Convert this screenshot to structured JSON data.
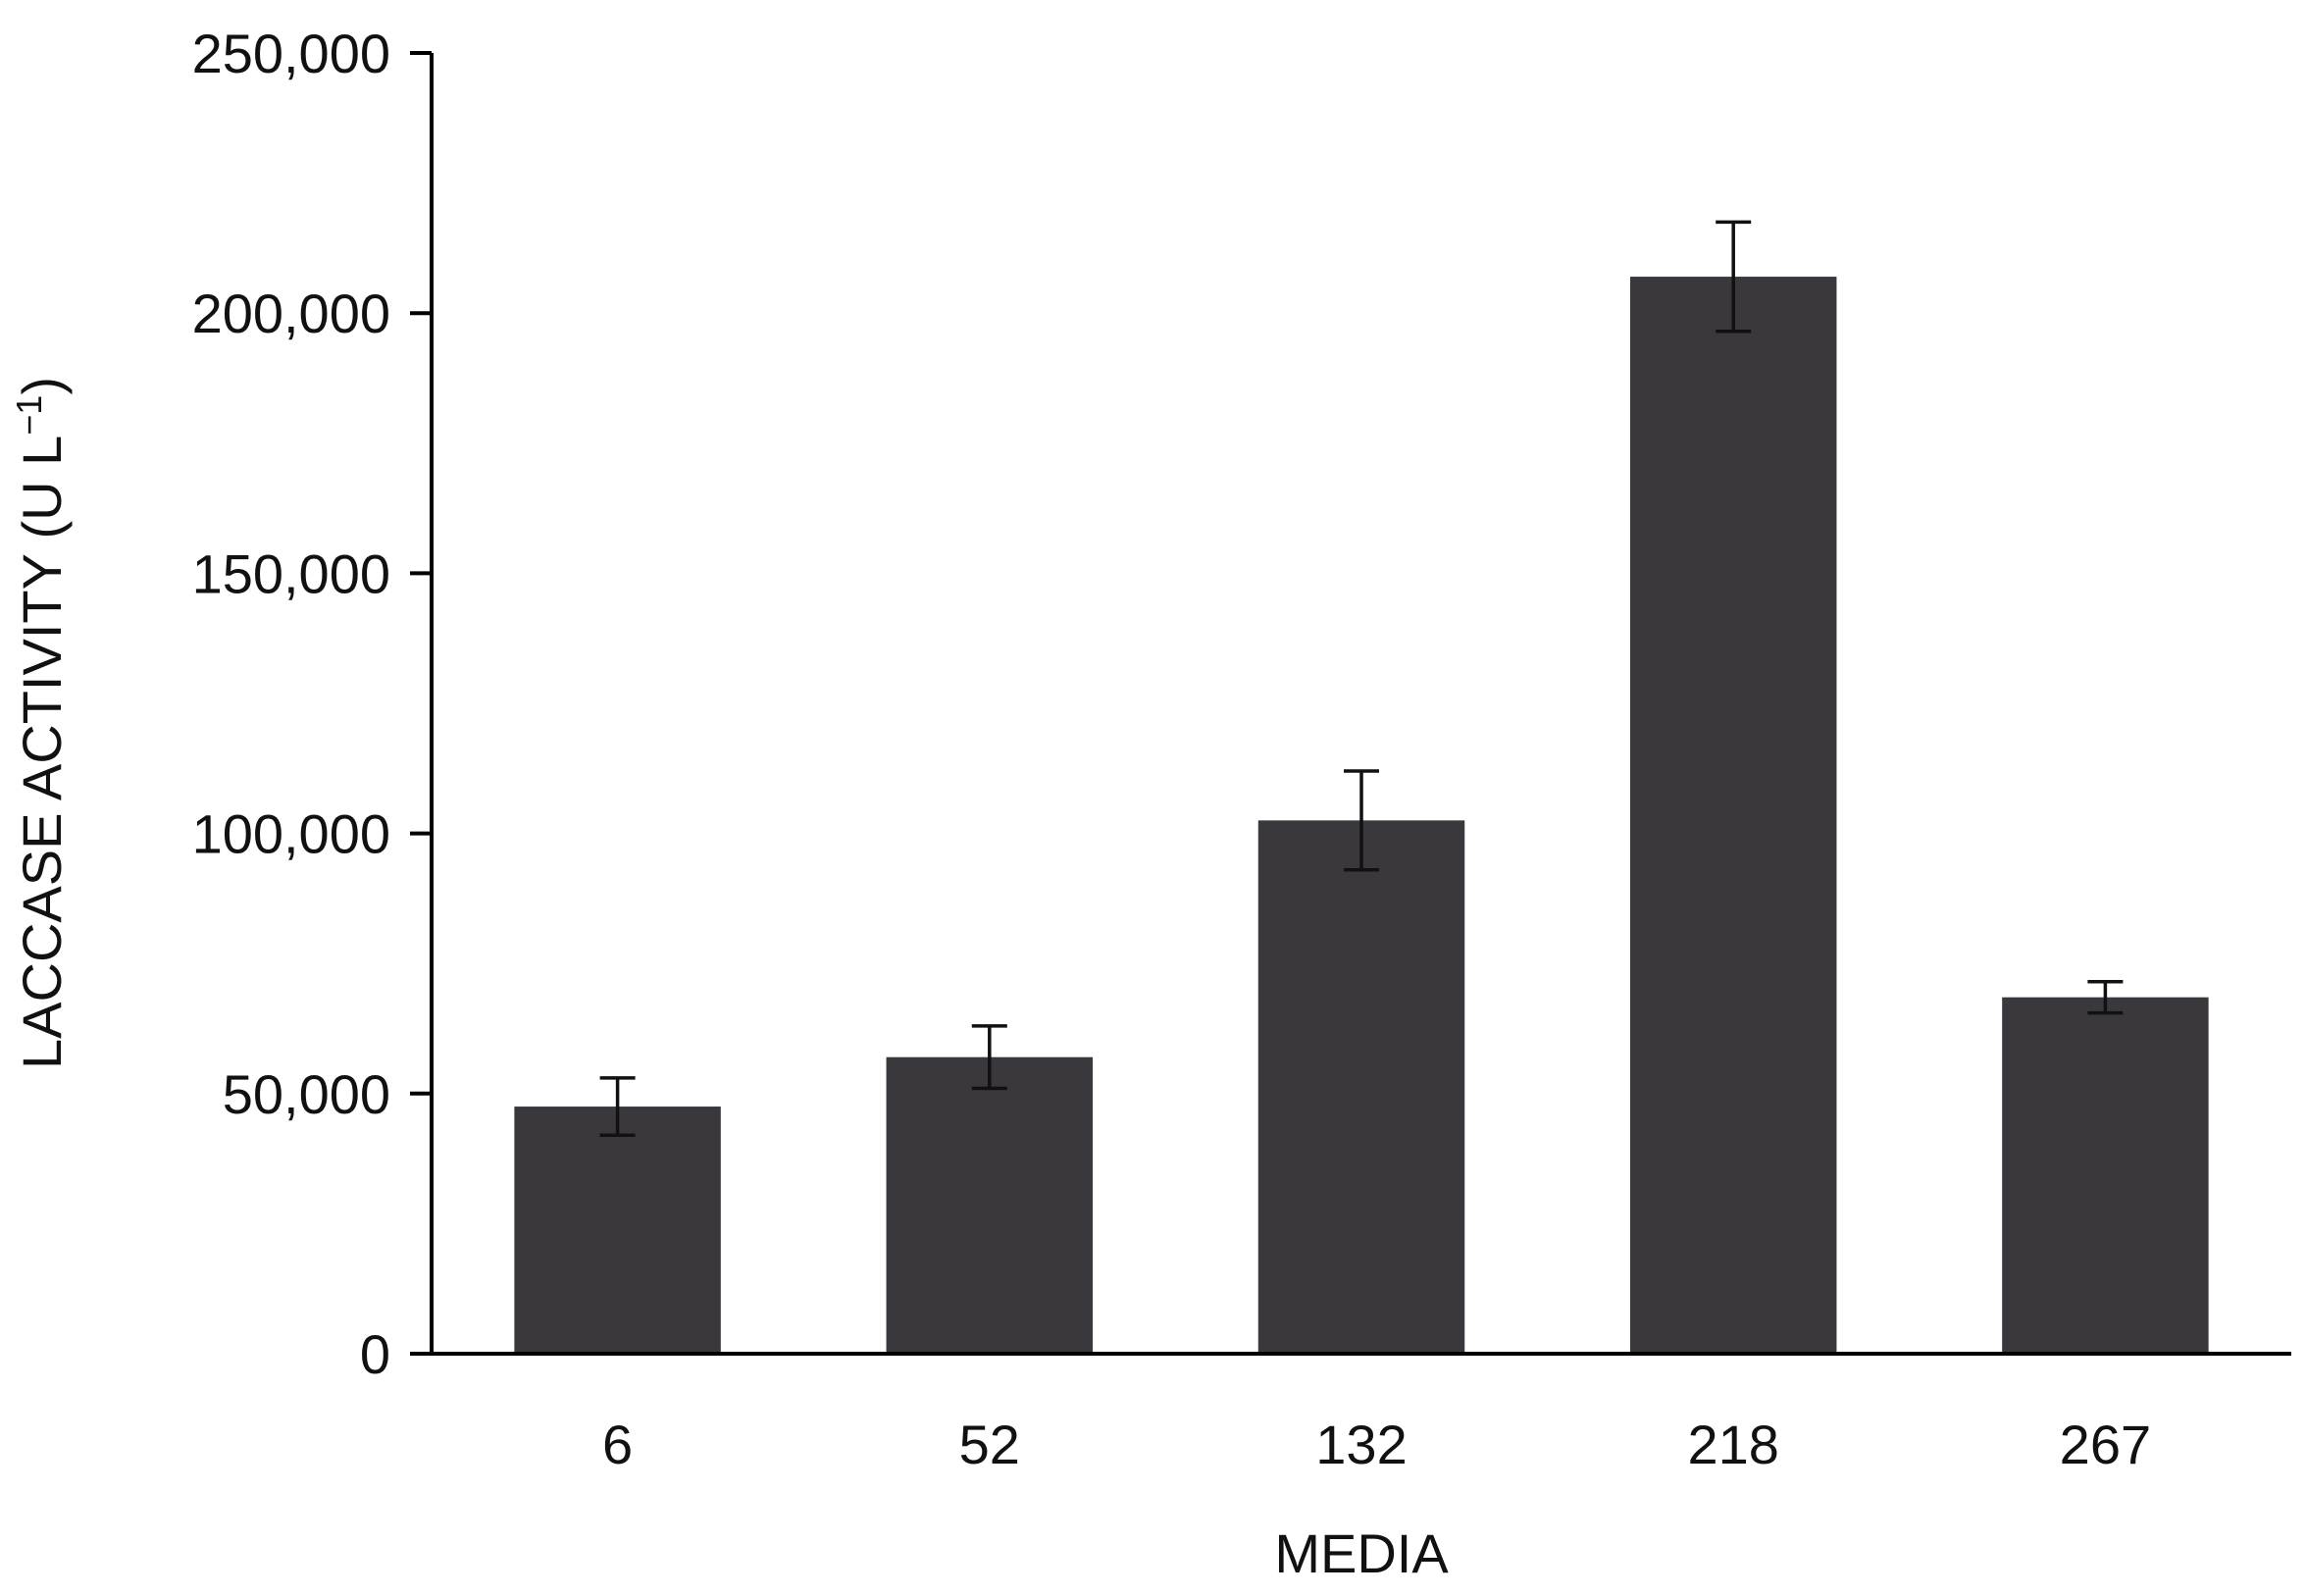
{
  "chart_data": {
    "type": "bar",
    "title": "",
    "xlabel": "MEDIA",
    "ylabel": "LACCASE ACTIVITY (U L",
    "ylabel_sup": "−1",
    "ylabel_close": ")",
    "categories": [
      "6",
      "52",
      "132",
      "218",
      "267"
    ],
    "values": [
      47500,
      57000,
      102500,
      207000,
      68500
    ],
    "errors": [
      5500,
      6000,
      9500,
      10500,
      3000
    ],
    "ylim": [
      0,
      250000
    ],
    "yticks": [
      0,
      50000,
      100000,
      150000,
      200000,
      250000
    ],
    "ytick_labels": [
      "0",
      "50,000",
      "100,000",
      "150,000",
      "200,000",
      "250,000"
    ],
    "bar_color": "#3a383d",
    "grid": false,
    "legend": false
  }
}
